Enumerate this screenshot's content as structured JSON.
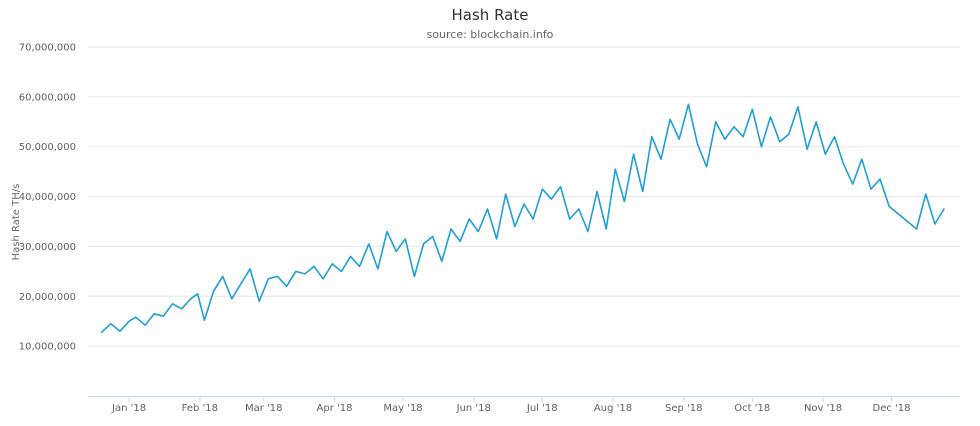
{
  "chart_data": {
    "type": "line",
    "title": "Hash Rate",
    "subtitle": "source: blockchain.info",
    "xlabel": "",
    "ylabel": "Hash Rate TH/s",
    "ylim": [
      0,
      70000000
    ],
    "yticks": [
      "10,000,000",
      "20,000,000",
      "30,000,000",
      "40,000,000",
      "50,000,000",
      "60,000,000",
      "70,000,000"
    ],
    "ytick_values": [
      10000000,
      20000000,
      30000000,
      40000000,
      50000000,
      60000000,
      70000000
    ],
    "xticks": [
      "Jan '18",
      "Feb '18",
      "Mar '18",
      "Apr '18",
      "May '18",
      "Jun '18",
      "Jul '18",
      "Aug '18",
      "Sep '18",
      "Oct '18",
      "Nov '18",
      "Dec '18"
    ],
    "xtick_dates": [
      "2018-01-01",
      "2018-02-01",
      "2018-03-01",
      "2018-04-01",
      "2018-05-01",
      "2018-06-01",
      "2018-07-01",
      "2018-08-01",
      "2018-09-01",
      "2018-10-01",
      "2018-11-01",
      "2018-12-01"
    ],
    "xlim": [
      "2017-12-14",
      "2018-12-31"
    ],
    "grid": true,
    "legend": "none",
    "color": "#1f9fd6",
    "series": [
      {
        "x": [
          "2017-12-20",
          "2017-12-24",
          "2017-12-28",
          "2018-01-01",
          "2018-01-04",
          "2018-01-08",
          "2018-01-12",
          "2018-01-16",
          "2018-01-20",
          "2018-01-24",
          "2018-01-28",
          "2018-01-31",
          "2018-02-03",
          "2018-02-07",
          "2018-02-11",
          "2018-02-15",
          "2018-02-19",
          "2018-02-23",
          "2018-02-27",
          "2018-03-03",
          "2018-03-07",
          "2018-03-11",
          "2018-03-15",
          "2018-03-19",
          "2018-03-23",
          "2018-03-27",
          "2018-03-31",
          "2018-04-04",
          "2018-04-08",
          "2018-04-12",
          "2018-04-16",
          "2018-04-20",
          "2018-04-24",
          "2018-04-28",
          "2018-05-02",
          "2018-05-06",
          "2018-05-10",
          "2018-05-14",
          "2018-05-18",
          "2018-05-22",
          "2018-05-26",
          "2018-05-30",
          "2018-06-03",
          "2018-06-07",
          "2018-06-11",
          "2018-06-15",
          "2018-06-19",
          "2018-06-23",
          "2018-06-27",
          "2018-07-01",
          "2018-07-05",
          "2018-07-09",
          "2018-07-13",
          "2018-07-17",
          "2018-07-21",
          "2018-07-25",
          "2018-07-29",
          "2018-08-02",
          "2018-08-06",
          "2018-08-10",
          "2018-08-14",
          "2018-08-18",
          "2018-08-22",
          "2018-08-26",
          "2018-08-30",
          "2018-09-03",
          "2018-09-07",
          "2018-09-11",
          "2018-09-15",
          "2018-09-19",
          "2018-09-23",
          "2018-09-27",
          "2018-10-01",
          "2018-10-05",
          "2018-10-09",
          "2018-10-13",
          "2018-10-17",
          "2018-10-21",
          "2018-10-25",
          "2018-10-29",
          "2018-11-02",
          "2018-11-06",
          "2018-11-10",
          "2018-11-14",
          "2018-11-18",
          "2018-11-22",
          "2018-11-26",
          "2018-11-30",
          "2018-12-04",
          "2018-12-08",
          "2018-12-12",
          "2018-12-16",
          "2018-12-20",
          "2018-12-24"
        ],
        "y": [
          12800000,
          14500000,
          13000000,
          15000000,
          15800000,
          14200000,
          16500000,
          16000000,
          18500000,
          17500000,
          19500000,
          20500000,
          15200000,
          21000000,
          24000000,
          19500000,
          22500000,
          25500000,
          19000000,
          23500000,
          24000000,
          22000000,
          25000000,
          24500000,
          26000000,
          23500000,
          26500000,
          25000000,
          28000000,
          26000000,
          30500000,
          25500000,
          33000000,
          29000000,
          31500000,
          24000000,
          30500000,
          32000000,
          27000000,
          33500000,
          31000000,
          35500000,
          33000000,
          37500000,
          31500000,
          40500000,
          34000000,
          38500000,
          35500000,
          41500000,
          39500000,
          42000000,
          35500000,
          37500000,
          33000000,
          41000000,
          33500000,
          45500000,
          39000000,
          48500000,
          41000000,
          52000000,
          47500000,
          55500000,
          51500000,
          58500000,
          50500000,
          46000000,
          55000000,
          51500000,
          54000000,
          52000000,
          57500000,
          50000000,
          56000000,
          51000000,
          52500000,
          58000000,
          49500000,
          55000000,
          48500000,
          52000000,
          46500000,
          42500000,
          47500000,
          41500000,
          43500000,
          38000000,
          36500000,
          35000000,
          33500000,
          40500000,
          34500000,
          37500000
        ]
      }
    ]
  }
}
